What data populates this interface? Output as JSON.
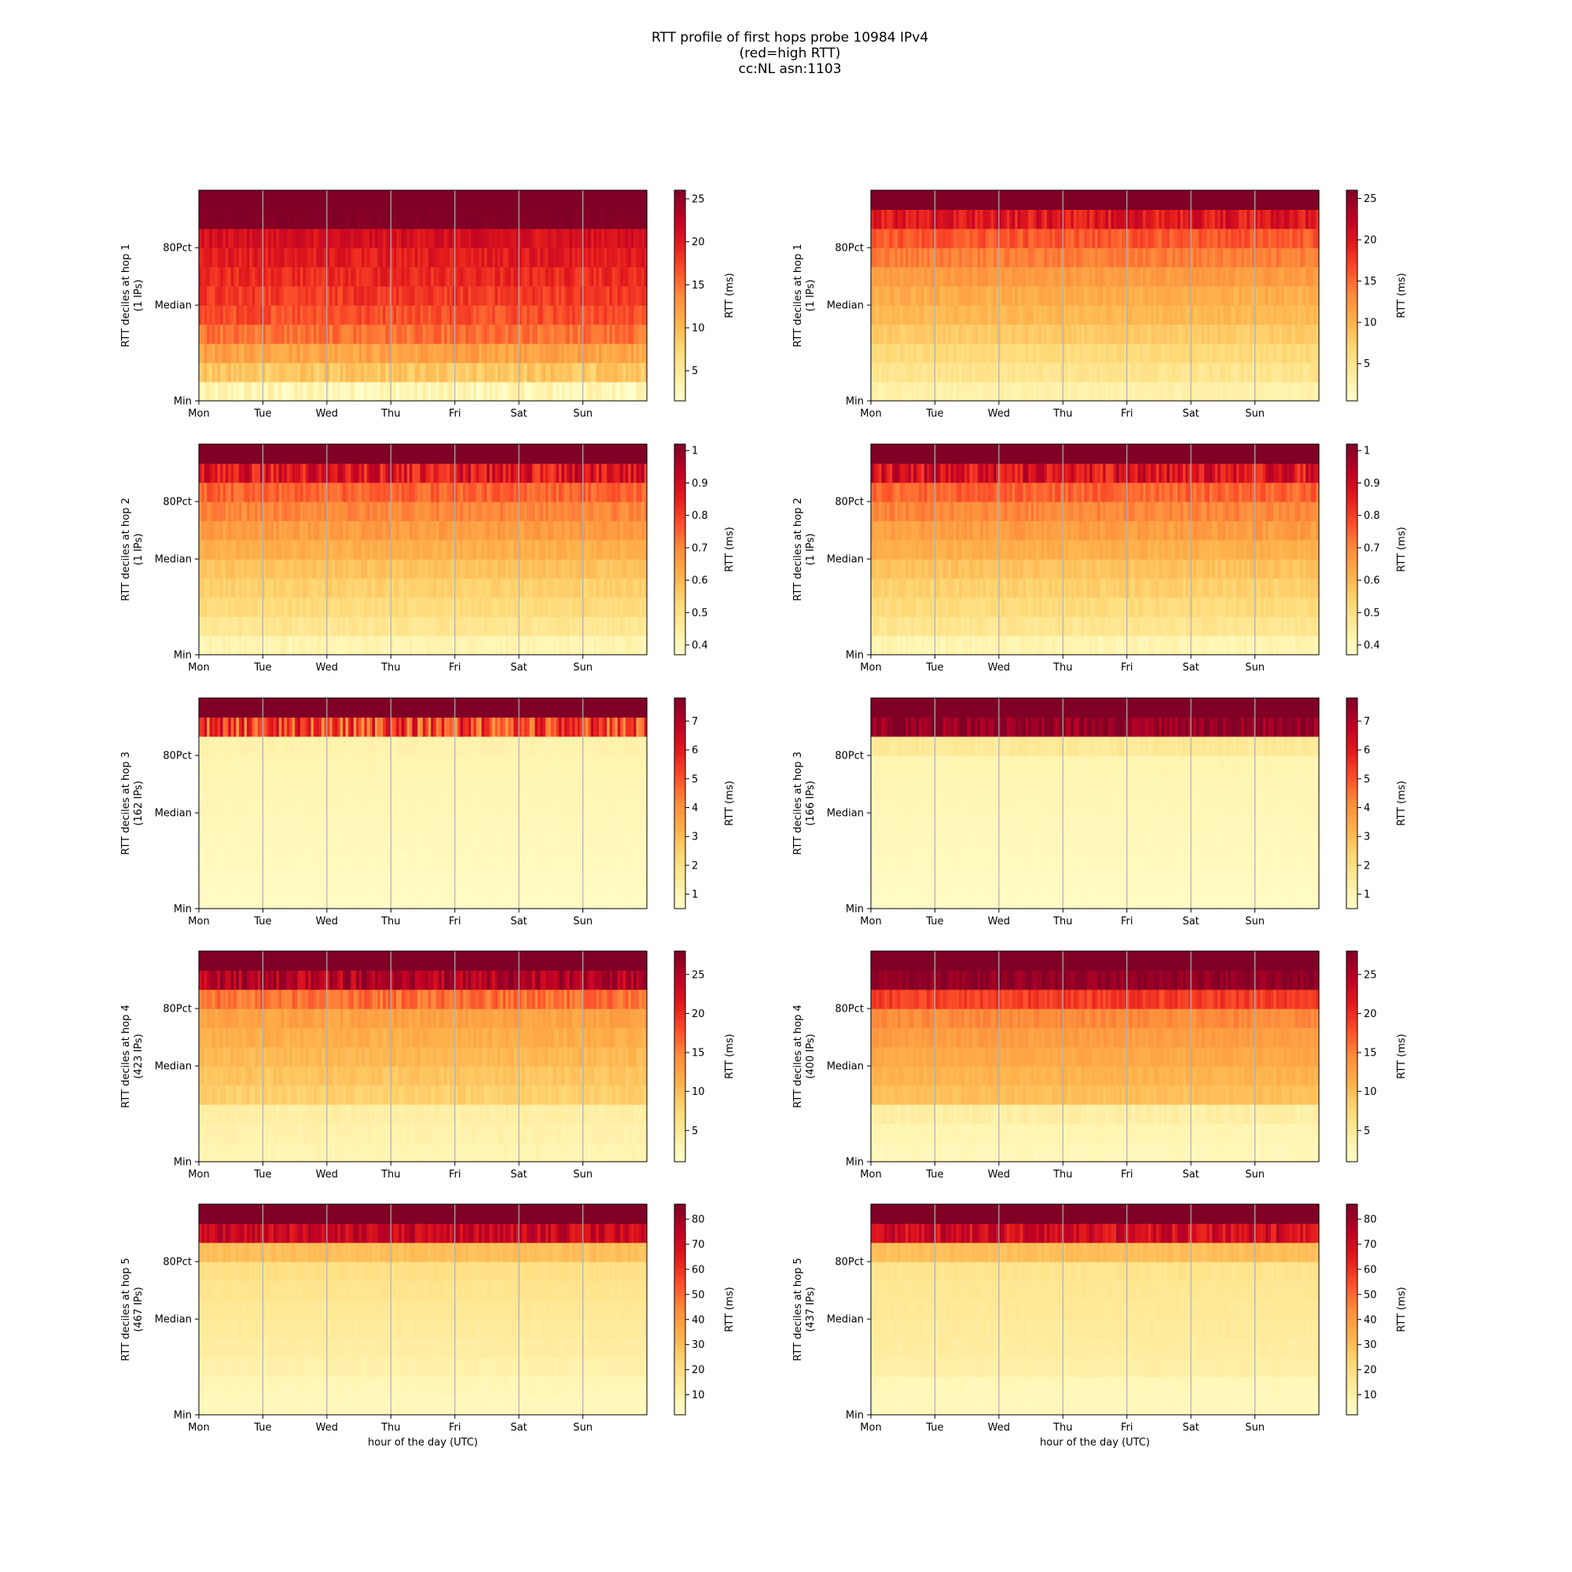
{
  "title_lines": [
    "RTT profile of first hops probe 10984 IPv4",
    "(red=high RTT)",
    "cc:NL asn:1103"
  ],
  "chart_data": [
    {
      "type": "heatmap",
      "hop": 1,
      "column": "left",
      "ylabel": "RTT deciles at hop 1",
      "ylabel2": "(1 IPs)",
      "xlabel": "",
      "x_tick_labels": [
        "Mon",
        "Tue",
        "Wed",
        "Thu",
        "Fri",
        "Sat",
        "Sun"
      ],
      "y_tick_labels": [
        "Min",
        "Median",
        "80Pct"
      ],
      "deciles": 11,
      "colorbar": {
        "label": "RTT (ms)",
        "ticks": [
          5,
          10,
          15,
          20,
          25
        ],
        "range": [
          1.5,
          26
        ]
      },
      "band_values": [
        3,
        9,
        12,
        15,
        17,
        18,
        19,
        20,
        21,
        26,
        26
      ],
      "noise": [
        2.0,
        1.5,
        1.5,
        1.5,
        1.5,
        1.5,
        1.5,
        1.5,
        1.5,
        0.5,
        0
      ]
    },
    {
      "type": "heatmap",
      "hop": 1,
      "column": "right",
      "ylabel": "RTT deciles at hop 1",
      "ylabel2": "(1 IPs)",
      "xlabel": "",
      "x_tick_labels": [
        "Mon",
        "Tue",
        "Wed",
        "Thu",
        "Fri",
        "Sat",
        "Sun"
      ],
      "y_tick_labels": [
        "Min",
        "Median",
        "80Pct"
      ],
      "deciles": 11,
      "colorbar": {
        "label": "RTT (ms)",
        "ticks": [
          5,
          10,
          15,
          20,
          25
        ],
        "range": [
          0.5,
          26
        ]
      },
      "band_values": [
        3,
        5,
        6.5,
        8,
        9.5,
        10.5,
        12,
        14,
        16,
        20,
        26
      ],
      "noise": [
        0.6,
        0.8,
        0.8,
        0.8,
        0.8,
        1,
        1,
        1,
        1.5,
        2.5,
        0
      ]
    },
    {
      "type": "heatmap",
      "hop": 2,
      "column": "left",
      "ylabel": "RTT deciles at hop 2",
      "ylabel2": "(1 IPs)",
      "xlabel": "",
      "x_tick_labels": [
        "Mon",
        "Tue",
        "Wed",
        "Thu",
        "Fri",
        "Sat",
        "Sun"
      ],
      "y_tick_labels": [
        "Min",
        "Median",
        "80Pct"
      ],
      "deciles": 11,
      "colorbar": {
        "label": "RTT (ms)",
        "ticks": [
          0.4,
          0.5,
          0.6,
          0.7,
          0.8,
          0.9,
          1.0
        ],
        "range": [
          0.37,
          1.02
        ]
      },
      "band_values": [
        0.42,
        0.48,
        0.52,
        0.55,
        0.58,
        0.62,
        0.66,
        0.7,
        0.75,
        0.87,
        1.02
      ],
      "noise": [
        0.02,
        0.02,
        0.02,
        0.02,
        0.02,
        0.02,
        0.03,
        0.03,
        0.04,
        0.09,
        0
      ]
    },
    {
      "type": "heatmap",
      "hop": 2,
      "column": "right",
      "ylabel": "RTT deciles at hop 2",
      "ylabel2": "(1 IPs)",
      "xlabel": "",
      "x_tick_labels": [
        "Mon",
        "Tue",
        "Wed",
        "Thu",
        "Fri",
        "Sat",
        "Sun"
      ],
      "y_tick_labels": [
        "Min",
        "Median",
        "80Pct"
      ],
      "deciles": 11,
      "colorbar": {
        "label": "RTT (ms)",
        "ticks": [
          0.4,
          0.5,
          0.6,
          0.7,
          0.8,
          0.9,
          1.0
        ],
        "range": [
          0.37,
          1.02
        ]
      },
      "band_values": [
        0.42,
        0.48,
        0.52,
        0.55,
        0.58,
        0.62,
        0.66,
        0.7,
        0.75,
        0.88,
        1.02
      ],
      "noise": [
        0.02,
        0.02,
        0.02,
        0.02,
        0.02,
        0.02,
        0.03,
        0.03,
        0.04,
        0.09,
        0
      ]
    },
    {
      "type": "heatmap",
      "hop": 3,
      "column": "left",
      "ylabel": "RTT deciles at hop 3",
      "ylabel2": "(162 IPs)",
      "xlabel": "",
      "x_tick_labels": [
        "Mon",
        "Tue",
        "Wed",
        "Thu",
        "Fri",
        "Sat",
        "Sun"
      ],
      "y_tick_labels": [
        "Min",
        "Median",
        "80Pct"
      ],
      "deciles": 11,
      "colorbar": {
        "label": "RTT (ms)",
        "ticks": [
          1,
          2,
          3,
          4,
          5,
          6,
          7
        ],
        "range": [
          0.5,
          7.8
        ]
      },
      "band_values": [
        0.7,
        0.75,
        0.8,
        0.85,
        0.9,
        0.95,
        1.0,
        1.05,
        1.15,
        5.2,
        7.8
      ],
      "noise": [
        0.03,
        0.03,
        0.03,
        0.03,
        0.03,
        0.03,
        0.04,
        0.05,
        0.08,
        1.6,
        0
      ]
    },
    {
      "type": "heatmap",
      "hop": 3,
      "column": "right",
      "ylabel": "RTT deciles at hop 3",
      "ylabel2": "(166 IPs)",
      "xlabel": "",
      "x_tick_labels": [
        "Mon",
        "Tue",
        "Wed",
        "Thu",
        "Fri",
        "Sat",
        "Sun"
      ],
      "y_tick_labels": [
        "Min",
        "Median",
        "80Pct"
      ],
      "deciles": 11,
      "colorbar": {
        "label": "RTT (ms)",
        "ticks": [
          1,
          2,
          3,
          4,
          5,
          6,
          7
        ],
        "range": [
          0.5,
          7.8
        ]
      },
      "band_values": [
        0.7,
        0.75,
        0.8,
        0.85,
        0.9,
        0.95,
        1.0,
        1.05,
        1.6,
        7.5,
        7.8
      ],
      "noise": [
        0.03,
        0.03,
        0.03,
        0.03,
        0.03,
        0.03,
        0.04,
        0.05,
        0.2,
        0.7,
        0
      ]
    },
    {
      "type": "heatmap",
      "hop": 4,
      "column": "left",
      "ylabel": "RTT deciles at hop 4",
      "ylabel2": "(423 IPs)",
      "xlabel": "",
      "x_tick_labels": [
        "Mon",
        "Tue",
        "Wed",
        "Thu",
        "Fri",
        "Sat",
        "Sun"
      ],
      "y_tick_labels": [
        "Min",
        "Median",
        "80Pct"
      ],
      "deciles": 11,
      "colorbar": {
        "label": "RTT (ms)",
        "ticks": [
          5,
          10,
          15,
          20,
          25
        ],
        "range": [
          1,
          28
        ]
      },
      "band_values": [
        3,
        3.5,
        4,
        8.5,
        9.5,
        10.5,
        11.5,
        12.5,
        16,
        25,
        28
      ],
      "noise": [
        0.4,
        0.4,
        0.5,
        0.8,
        0.8,
        0.8,
        0.8,
        1,
        2,
        3,
        0
      ]
    },
    {
      "type": "heatmap",
      "hop": 4,
      "column": "right",
      "ylabel": "RTT deciles at hop 4",
      "ylabel2": "(400 IPs)",
      "xlabel": "",
      "x_tick_labels": [
        "Mon",
        "Tue",
        "Wed",
        "Thu",
        "Fri",
        "Sat",
        "Sun"
      ],
      "y_tick_labels": [
        "Min",
        "Median",
        "80Pct"
      ],
      "deciles": 11,
      "colorbar": {
        "label": "RTT (ms)",
        "ticks": [
          5,
          10,
          15,
          20,
          25
        ],
        "range": [
          1,
          28
        ]
      },
      "band_values": [
        2.5,
        3,
        4,
        10,
        11,
        12,
        13,
        14.5,
        19,
        27,
        28
      ],
      "noise": [
        0.3,
        0.3,
        0.8,
        0.6,
        0.6,
        0.6,
        0.8,
        1,
        1.5,
        1.5,
        0
      ]
    },
    {
      "type": "heatmap",
      "hop": 5,
      "column": "left",
      "ylabel": "RTT deciles at hop 5",
      "ylabel2": "(467 IPs)",
      "xlabel": "hour of the day (UTC)",
      "x_tick_labels": [
        "Mon",
        "Tue",
        "Wed",
        "Thu",
        "Fri",
        "Sat",
        "Sun"
      ],
      "y_tick_labels": [
        "Min",
        "Median",
        "80Pct"
      ],
      "deciles": 11,
      "colorbar": {
        "label": "RTT (ms)",
        "ticks": [
          10,
          20,
          30,
          40,
          50,
          60,
          70,
          80
        ],
        "range": [
          2,
          86
        ]
      },
      "band_values": [
        6,
        7,
        10,
        12,
        13.5,
        15,
        17,
        19,
        30,
        72,
        86
      ],
      "noise": [
        0.6,
        0.8,
        1,
        1,
        1,
        1,
        1,
        1.5,
        2,
        8,
        0
      ]
    },
    {
      "type": "heatmap",
      "hop": 5,
      "column": "right",
      "ylabel": "RTT deciles at hop 5",
      "ylabel2": "(437 IPs)",
      "xlabel": "hour of the day (UTC)",
      "x_tick_labels": [
        "Mon",
        "Tue",
        "Wed",
        "Thu",
        "Fri",
        "Sat",
        "Sun"
      ],
      "y_tick_labels": [
        "Min",
        "Median",
        "80Pct"
      ],
      "deciles": 11,
      "colorbar": {
        "label": "RTT (ms)",
        "ticks": [
          10,
          20,
          30,
          40,
          50,
          60,
          70,
          80
        ],
        "range": [
          2,
          86
        ]
      },
      "band_values": [
        6,
        6.5,
        11,
        12.5,
        13.5,
        14.5,
        15.5,
        17,
        30,
        70,
        86
      ],
      "noise": [
        0.5,
        0.8,
        1,
        1,
        1,
        1,
        1,
        1.5,
        2,
        9,
        0
      ]
    }
  ]
}
